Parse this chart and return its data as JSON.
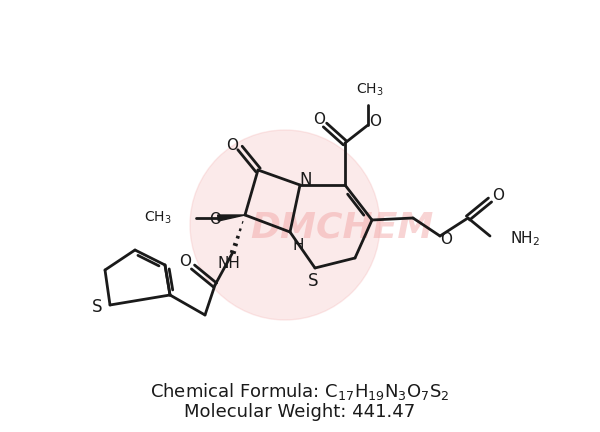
{
  "background_color": "#ffffff",
  "bond_color": "#1a1a1a",
  "lw": 2.0,
  "figsize": [
    6.0,
    4.32
  ],
  "dpi": 100,
  "watermark_text": "DMCHEM",
  "watermark_color": "#f0a0a0",
  "formula_text": "Chemical Formula: $\\mathregular{C_{17}H_{19}N_3O_7S_2}$",
  "mw_text": "Molecular Weight: 441.47",
  "font_size_label": 13,
  "font_size_atom": 11,
  "font_size_atom_large": 12
}
